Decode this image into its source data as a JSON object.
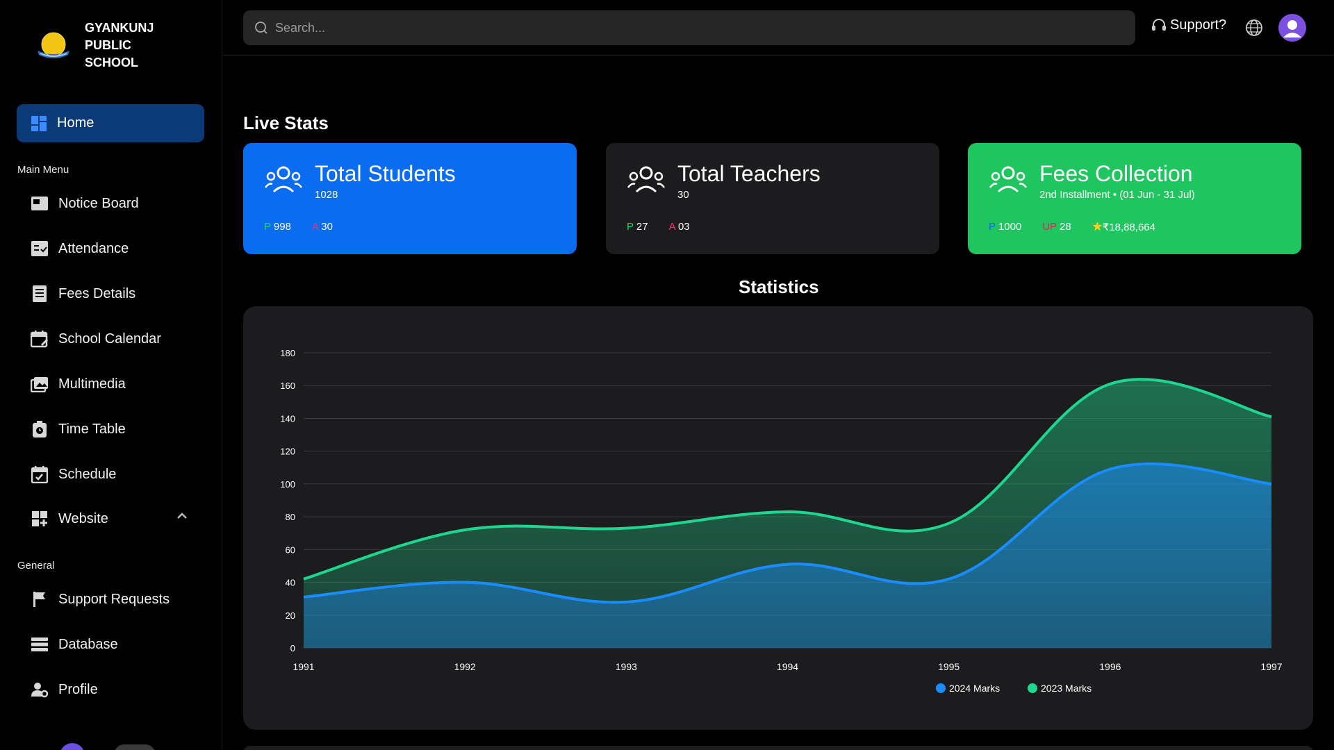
{
  "brand": {
    "name": "GYANKUNJ PUBLIC SCHOOL"
  },
  "sidebar": {
    "home_label": "Home",
    "main_menu_label": "Main Menu",
    "general_label": "General",
    "main_items": [
      {
        "label": "Notice Board",
        "icon": "notice-board-icon"
      },
      {
        "label": "Attendance",
        "icon": "attendance-icon"
      },
      {
        "label": "Fees Details",
        "icon": "fees-icon"
      },
      {
        "label": "School Calendar",
        "icon": "calendar-icon"
      },
      {
        "label": "Multimedia",
        "icon": "multimedia-icon"
      },
      {
        "label": "Time Table",
        "icon": "time-table-icon"
      },
      {
        "label": "Schedule",
        "icon": "schedule-icon"
      },
      {
        "label": "Website",
        "icon": "website-icon"
      }
    ],
    "general_items": [
      {
        "label": "Support Requests",
        "icon": "flag-icon"
      },
      {
        "label": "Database",
        "icon": "database-icon"
      },
      {
        "label": "Profile",
        "icon": "profile-icon"
      }
    ]
  },
  "topbar": {
    "search_placeholder": "Search...",
    "support_label": "Support?"
  },
  "live_stats": {
    "title": "Live Stats",
    "cards": [
      {
        "title": "Total Students",
        "sub": "1028",
        "p_label": "P",
        "p_value": "998",
        "a_label": "A",
        "a_value": "30",
        "color": "#0a6cf0"
      },
      {
        "title": "Total Teachers",
        "sub": "30",
        "p_label": "P",
        "p_value": "27",
        "a_label": "A",
        "a_value": "03",
        "color": "#1c1c1e"
      },
      {
        "title": "Fees Collection",
        "sub": "2nd Installment • (01 Jun - 31 Jul)",
        "p_label": "P",
        "p_value": "1000",
        "up_label": "UP",
        "up_value": "28",
        "amount": "₹18,88,664",
        "color": "#1fc55f"
      }
    ]
  },
  "statistics": {
    "title": "Statistics"
  },
  "chart_data": {
    "type": "area",
    "x": [
      "1991",
      "1992",
      "1993",
      "1994",
      "1995",
      "1996",
      "1997"
    ],
    "ylim": [
      0,
      180
    ],
    "yticks": [
      "0",
      "20",
      "40",
      "60",
      "80",
      "100",
      "120",
      "140",
      "160",
      "180"
    ],
    "grid": true,
    "legend_position": "bottom",
    "series": [
      {
        "name": "2024 Marks",
        "values": [
          31,
          40,
          28,
          51,
          42,
          109,
          100
        ],
        "color": "#1a8cff"
      },
      {
        "name": "2023 Marks",
        "values": [
          42,
          72,
          73,
          83,
          76,
          161,
          141
        ],
        "color": "#1fd690"
      }
    ]
  }
}
